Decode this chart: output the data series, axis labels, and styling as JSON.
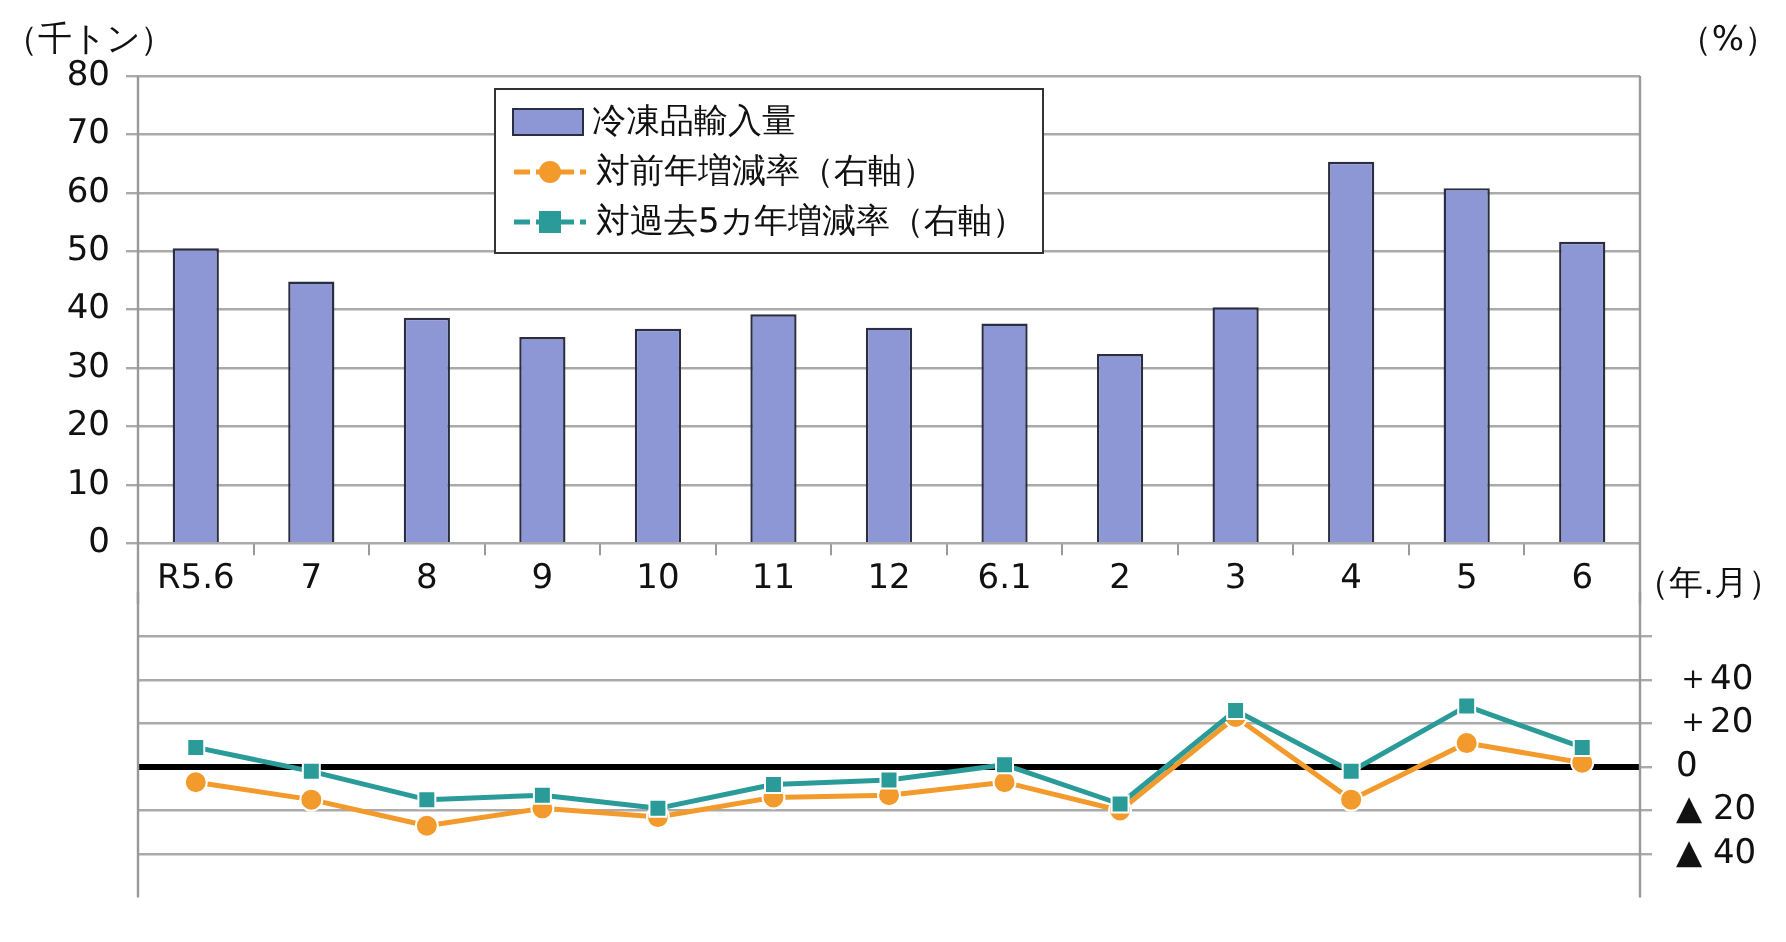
{
  "chart_data": [
    {
      "type": "bar",
      "ylabel": "（千トン）",
      "xlabel": "（年.月）",
      "categories": [
        "R5.6",
        "7",
        "8",
        "9",
        "10",
        "11",
        "12",
        "6.1",
        "2",
        "3",
        "4",
        "5",
        "6"
      ],
      "series": [
        {
          "name": "冷凍品輸入量",
          "color": "#8e97d6",
          "values": [
            50.5,
            44.8,
            38.6,
            35.3,
            36.7,
            39.2,
            36.9,
            37.6,
            32.4,
            40.4,
            65.3,
            60.8,
            51.6
          ]
        }
      ],
      "ylim": [
        0,
        80
      ],
      "yticks": [
        0,
        10,
        20,
        30,
        40,
        50,
        60,
        70,
        80
      ],
      "annotations": [
        "（%）"
      ],
      "grid": "y",
      "legend": "top"
    },
    {
      "type": "line",
      "categories": [
        null,
        null,
        null,
        null,
        null,
        null,
        null,
        null,
        null,
        null,
        null,
        null,
        null
      ],
      "series": [
        {
          "name": "対前年増減率（右軸）",
          "marker": "circle",
          "color": "#f39a2c",
          "values": [
            -7,
            -15,
            -27,
            -19,
            -23,
            -14,
            -13,
            -7,
            -20,
            23,
            -15,
            11,
            2
          ]
        },
        {
          "name": "対過去5カ年増減率（右軸）",
          "marker": "square",
          "color": "#2a9b98",
          "values": [
            9,
            -2,
            -15,
            -13,
            -19,
            -8,
            -6,
            1,
            -17,
            26,
            -2,
            28,
            9
          ]
        }
      ],
      "ylim": [
        -60,
        60
      ],
      "yticks": [
        {
          "value": -40,
          "label": "▲ 40"
        },
        {
          "value": -20,
          "label": "▲ 20"
        },
        {
          "value": 0,
          "label": "0"
        },
        {
          "value": 20,
          "label": "＋20"
        },
        {
          "value": 40,
          "label": "＋40"
        },
        {
          "value": 60,
          "label": null
        }
      ],
      "ref_lines": [
        {
          "axis": "y",
          "value": 0,
          "color": "#000000"
        }
      ],
      "tick_labels": "y",
      "grid": "y",
      "legend": "top"
    }
  ]
}
